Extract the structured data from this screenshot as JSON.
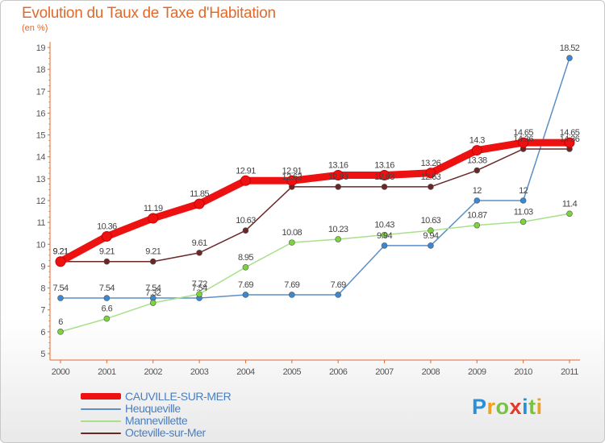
{
  "chart_data": {
    "type": "line",
    "title": "Evolution du Taux de Taxe d'Habitation",
    "unit_label": "(en %)",
    "xlabel": "",
    "ylabel": "",
    "x": [
      "2000",
      "2001",
      "2002",
      "2003",
      "2004",
      "2005",
      "2006",
      "2007",
      "2008",
      "2009",
      "2010",
      "2011"
    ],
    "ylim": [
      5,
      19
    ],
    "yticks": [
      5,
      6,
      7,
      8,
      9,
      10,
      11,
      12,
      13,
      14,
      15,
      16,
      17,
      18,
      19
    ],
    "grid": false,
    "legend_position": "bottom-left",
    "series": [
      {
        "name": "CAUVILLE-SUR-MER",
        "color": "#ee1111",
        "marker": "#ee1111",
        "values": [
          9.21,
          10.36,
          11.19,
          11.85,
          12.91,
          12.91,
          13.16,
          13.16,
          13.26,
          14.3,
          14.65,
          14.65
        ],
        "labels": [
          "9.21",
          "10.36",
          "11.19",
          "11.85",
          "12.91",
          "12.91",
          "13.16",
          "13.16",
          "13.26",
          "14.3",
          "14.65",
          "14.65"
        ]
      },
      {
        "name": "Heuqueville",
        "color": "#5b8fc6",
        "marker": "#3a88d0",
        "values": [
          7.54,
          7.54,
          7.54,
          7.54,
          7.69,
          7.69,
          7.69,
          9.94,
          9.94,
          12,
          12,
          18.52
        ],
        "labels": [
          "7.54",
          "7.54",
          "7.54",
          "7.54",
          "7.69",
          "7.69",
          "7.69",
          "9.94",
          "9.94",
          "12",
          "12",
          "18.52"
        ]
      },
      {
        "name": "Mannevillette",
        "color": "#a8e08a",
        "marker": "#7ad43a",
        "values": [
          6,
          6.6,
          7.32,
          7.72,
          8.95,
          10.08,
          10.23,
          10.43,
          10.63,
          10.87,
          11.03,
          11.4
        ],
        "labels": [
          "6",
          "6.6",
          "7.32",
          "7.72",
          "8.95",
          "10.08",
          "10.23",
          "10.43",
          "10.63",
          "10.87",
          "11.03",
          "11.4"
        ]
      },
      {
        "name": "Octeville-sur-Mer",
        "color": "#6b2727",
        "marker": "#6b2727",
        "values": [
          9.21,
          9.21,
          9.21,
          9.61,
          10.63,
          12.63,
          12.63,
          12.63,
          12.63,
          13.38,
          14.36,
          14.36
        ],
        "labels": [
          "9.21",
          "9.21",
          "9.21",
          "9.61",
          "10.63",
          "12.63",
          "12.63",
          "12.63",
          "12.63",
          "13.38",
          "14.36",
          "14.36"
        ]
      }
    ]
  },
  "legend": {
    "items": [
      {
        "label": "CAUVILLE-SUR-MER",
        "color": "#ee1111"
      },
      {
        "label": "Heuqueville",
        "color": "#5b8fc6"
      },
      {
        "label": "Mannevillette",
        "color": "#a8e08a"
      },
      {
        "label": "Octeville-sur-Mer",
        "color": "#6b2727"
      }
    ]
  },
  "brand": {
    "name": "Proxiti",
    "letters": [
      "P",
      "r",
      "o",
      "x",
      "i",
      "t",
      "i"
    ],
    "colors": [
      "#2a8fd6",
      "#f0a020",
      "#7bc143",
      "#e33b2a",
      "#2a8fd6",
      "#7bc143",
      "#f0a020"
    ]
  }
}
